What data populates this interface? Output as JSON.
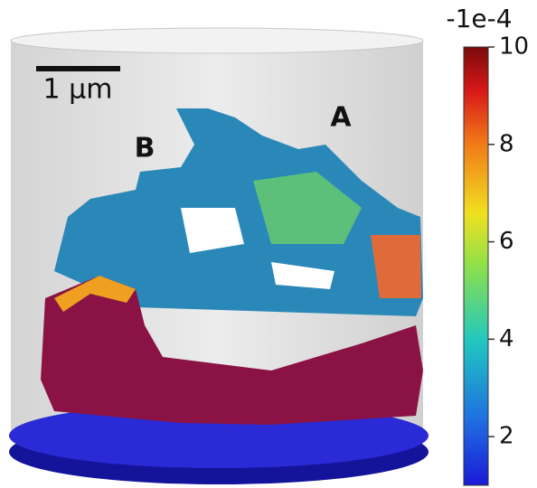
{
  "annotations": {
    "scale_bar": "1 μm",
    "label_a": "A",
    "label_b": "B"
  },
  "colorbar": {
    "title": "-1e-4",
    "lim": [
      1,
      10
    ],
    "ticks": [
      2,
      4,
      6,
      8,
      10
    ]
  }
}
